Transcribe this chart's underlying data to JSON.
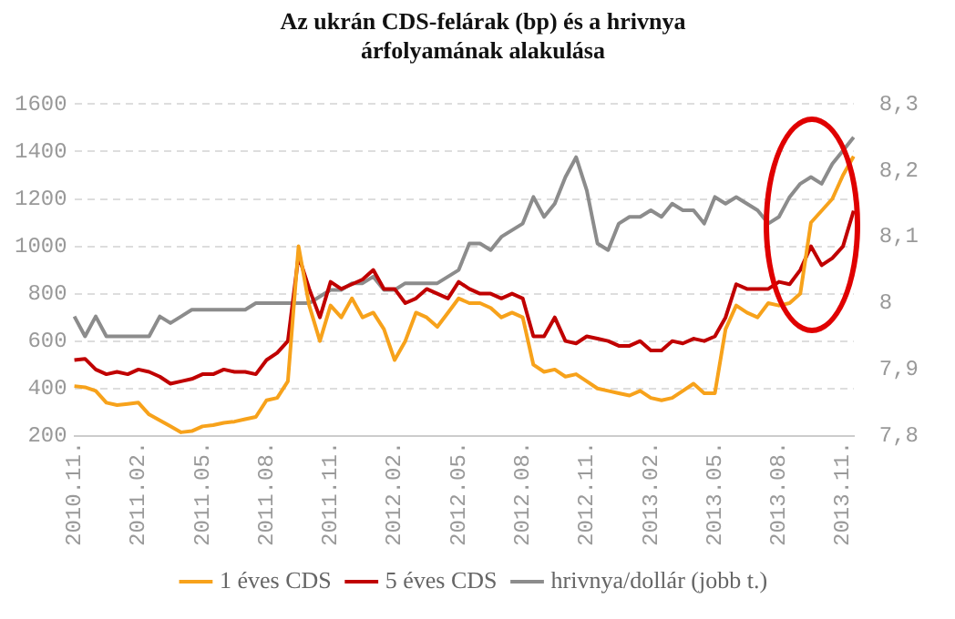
{
  "chart_data": {
    "type": "line",
    "title": "Az ukrán CDS-felárak (bp) és a hrivnya árfolyamának alakulása",
    "categories": [
      "2010.11.",
      null,
      null,
      null,
      null,
      null,
      "2011.02.",
      null,
      null,
      null,
      null,
      null,
      "2011.05.",
      null,
      null,
      null,
      null,
      null,
      "2011.08.",
      null,
      null,
      null,
      null,
      null,
      "2011.11.",
      null,
      null,
      null,
      null,
      null,
      "2012.02.",
      null,
      null,
      null,
      null,
      null,
      "2012.05.",
      null,
      null,
      null,
      null,
      null,
      "2012.08.",
      null,
      null,
      null,
      null,
      null,
      "2012.11.",
      null,
      null,
      null,
      null,
      null,
      "2013.02.",
      null,
      null,
      null,
      null,
      null,
      "2013.05.",
      null,
      null,
      null,
      null,
      null,
      "2013.08.",
      null,
      null,
      null,
      null,
      null,
      "2013.11.",
      null
    ],
    "series": [
      {
        "name": "1 éves CDS",
        "color": "#f7a21b",
        "values": [
          410,
          405,
          390,
          340,
          330,
          335,
          340,
          290,
          265,
          240,
          215,
          220,
          240,
          245,
          255,
          260,
          270,
          280,
          350,
          360,
          430,
          1000,
          750,
          600,
          750,
          700,
          780,
          700,
          720,
          650,
          520,
          600,
          720,
          700,
          660,
          720,
          780,
          760,
          760,
          740,
          700,
          720,
          700,
          500,
          470,
          480,
          450,
          460,
          430,
          400,
          390,
          380,
          370,
          390,
          360,
          350,
          360,
          390,
          420,
          380,
          380,
          650,
          750,
          720,
          700,
          760,
          750,
          760,
          800,
          1100,
          1150,
          1200,
          1300,
          1380
        ]
      },
      {
        "name": "5 éves CDS",
        "color": "#c00000",
        "values": [
          520,
          525,
          480,
          460,
          470,
          460,
          480,
          470,
          450,
          420,
          430,
          440,
          460,
          460,
          480,
          470,
          470,
          460,
          520,
          550,
          600,
          960,
          820,
          700,
          850,
          820,
          840,
          860,
          900,
          820,
          820,
          760,
          780,
          820,
          800,
          780,
          850,
          820,
          800,
          800,
          780,
          800,
          780,
          620,
          620,
          700,
          600,
          590,
          620,
          610,
          600,
          580,
          580,
          600,
          560,
          560,
          600,
          590,
          610,
          600,
          620,
          700,
          840,
          820,
          820,
          820,
          850,
          840,
          900,
          1000,
          920,
          950,
          1000,
          1150
        ]
      },
      {
        "name": "hrivnya/dollár (jobb t.)",
        "color": "#8c8c8c",
        "axis": "y2",
        "values": [
          7.98,
          7.95,
          7.98,
          7.95,
          7.95,
          7.95,
          7.95,
          7.95,
          7.98,
          7.97,
          7.98,
          7.99,
          7.99,
          7.99,
          7.99,
          7.99,
          7.99,
          8.0,
          8.0,
          8.0,
          8.0,
          8.0,
          8.0,
          8.01,
          8.02,
          8.02,
          8.03,
          8.03,
          8.04,
          8.02,
          8.02,
          8.03,
          8.03,
          8.03,
          8.03,
          8.04,
          8.05,
          8.09,
          8.09,
          8.08,
          8.1,
          8.11,
          8.12,
          8.16,
          8.13,
          8.15,
          8.19,
          8.22,
          8.17,
          8.09,
          8.08,
          8.12,
          8.13,
          8.13,
          8.14,
          8.13,
          8.15,
          8.14,
          8.14,
          8.12,
          8.16,
          8.15,
          8.16,
          8.15,
          8.14,
          8.12,
          8.13,
          8.16,
          8.18,
          8.19,
          8.18,
          8.21,
          8.23,
          8.25
        ]
      }
    ],
    "ylim": [
      200,
      1600
    ],
    "yticks": [
      200,
      400,
      600,
      800,
      1000,
      1200,
      1400,
      1600
    ],
    "y2lim": [
      7.8,
      8.3
    ],
    "y2ticks": [
      {
        "value": 7.8,
        "label": "7,8"
      },
      {
        "value": 7.9,
        "label": "7,9"
      },
      8,
      {
        "value": 8.1,
        "label": "8,1"
      },
      {
        "value": 8.2,
        "label": "8,2"
      },
      {
        "value": 8.3,
        "label": "8,3"
      }
    ],
    "grid": "y",
    "legend": "bottom",
    "marker": "none",
    "line_style": "solid"
  }
}
